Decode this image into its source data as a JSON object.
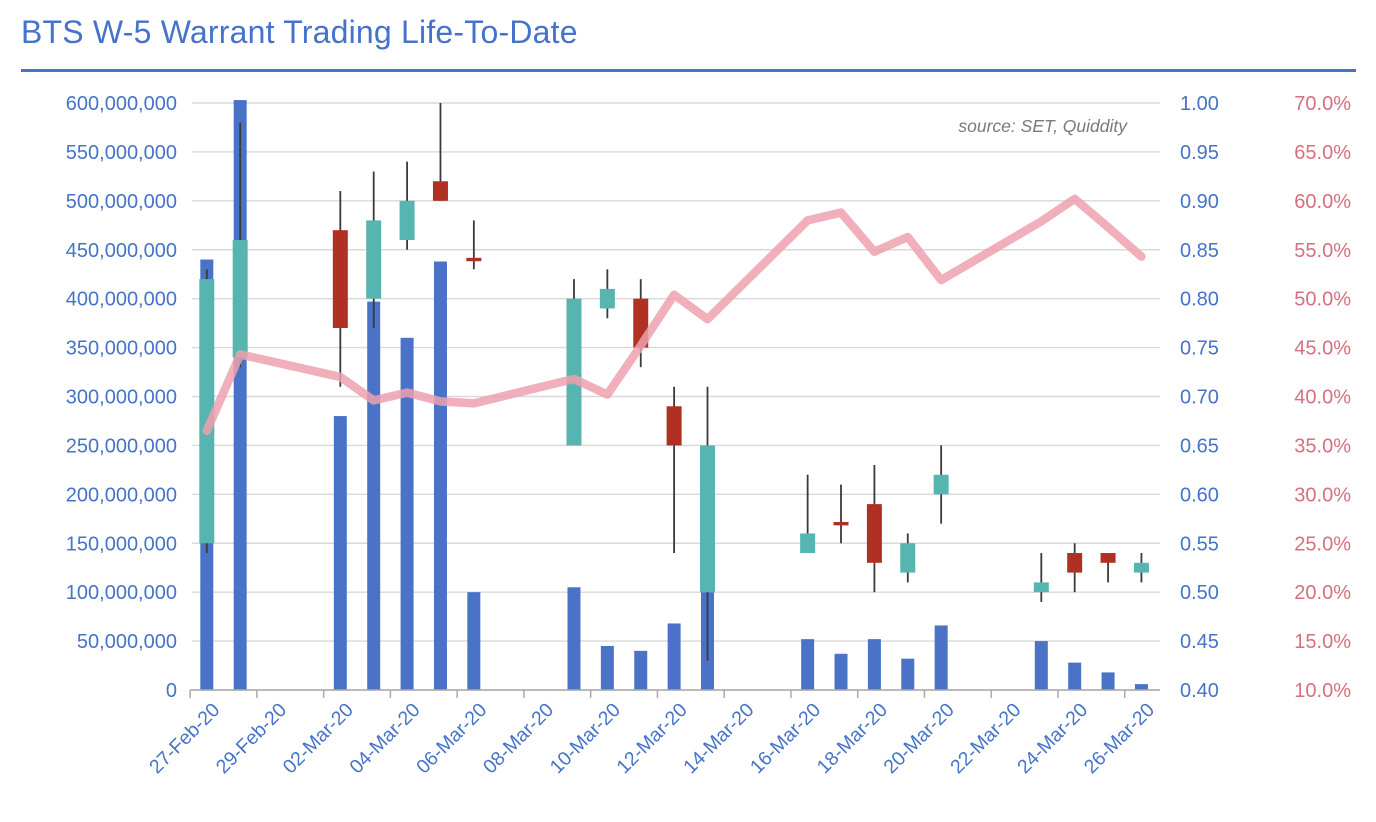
{
  "header": {
    "title": "BTS W-5 Warrant Trading Life-To-Date",
    "source_note": "source: SET, Quiddity"
  },
  "colors": {
    "title": "#4573c9",
    "divider": "#4573c9",
    "axis_blue": "#4573c9",
    "axis_pink": "#d66f7e",
    "volume_bar": "#4a73c8",
    "candle_up": "#57b5b1",
    "candle_down": "#b03123",
    "candle_wick": "#3a3a3a",
    "pct_line": "#eda1ae",
    "gridline": "#d9d9d9",
    "axis_line": "#aaaaaa",
    "source_text": "#7a7a7a"
  },
  "chart_data": {
    "type": "combo: volume bars (left axis) + daily OHLC candlesticks (right price axis) + percent line (far right axis)",
    "title": "BTS W-5 Warrant Trading Life-To-Date",
    "legend_position": "none",
    "grid": "horizontal only",
    "x_tick_labels": [
      "27-Feb-20",
      "29-Feb-20",
      "02-Mar-20",
      "04-Mar-20",
      "06-Mar-20",
      "08-Mar-20",
      "10-Mar-20",
      "12-Mar-20",
      "14-Mar-20",
      "16-Mar-20",
      "18-Mar-20",
      "20-Mar-20",
      "22-Mar-20",
      "24-Mar-20",
      "26-Mar-20"
    ],
    "left_axis": {
      "min": 0,
      "max": 600000000,
      "ticks": [
        "600,000,000",
        "550,000,000",
        "500,000,000",
        "450,000,000",
        "400,000,000",
        "350,000,000",
        "300,000,000",
        "250,000,000",
        "200,000,000",
        "150,000,000",
        "100,000,000",
        "50,000,000",
        "0"
      ]
    },
    "right_axis_price": {
      "min": 0.4,
      "max": 1.0,
      "ticks": [
        "1.00",
        "0.95",
        "0.90",
        "0.85",
        "0.80",
        "0.75",
        "0.70",
        "0.65",
        "0.60",
        "0.55",
        "0.50",
        "0.45",
        "0.40"
      ]
    },
    "right_axis_pct": {
      "min": 10,
      "max": 70,
      "ticks": [
        "70.0%",
        "65.0%",
        "60.0%",
        "55.0%",
        "50.0%",
        "45.0%",
        "40.0%",
        "35.0%",
        "30.0%",
        "25.0%",
        "20.0%",
        "15.0%",
        "10.0%"
      ]
    },
    "points": [
      {
        "date": "27-Feb-20",
        "volume": 440000000,
        "open": 0.55,
        "high": 0.83,
        "low": 0.54,
        "close": 0.82,
        "pct": 36.5
      },
      {
        "date": "28-Feb-20",
        "volume": 603000000,
        "open": 0.74,
        "high": 0.98,
        "low": 0.73,
        "close": 0.86,
        "pct": 44.3
      },
      {
        "date": "02-Mar-20",
        "volume": 280000000,
        "open": 0.87,
        "high": 0.91,
        "low": 0.71,
        "close": 0.77,
        "pct": 42.0
      },
      {
        "date": "03-Mar-20",
        "volume": 397000000,
        "open": 0.8,
        "high": 0.93,
        "low": 0.77,
        "close": 0.88,
        "pct": 39.6
      },
      {
        "date": "04-Mar-20",
        "volume": 360000000,
        "open": 0.86,
        "high": 0.94,
        "low": 0.85,
        "close": 0.9,
        "pct": 40.4
      },
      {
        "date": "05-Mar-20",
        "volume": 438000000,
        "open": 0.92,
        "high": 1.0,
        "low": 0.9,
        "close": 0.9,
        "pct": 39.5
      },
      {
        "date": "06-Mar-20",
        "volume": 100000000,
        "open": 0.84,
        "high": 0.88,
        "low": 0.83,
        "close": 0.84,
        "pct": 39.3
      },
      {
        "date": "09-Mar-20",
        "volume": 105000000,
        "open": 0.65,
        "high": 0.82,
        "low": 0.65,
        "close": 0.8,
        "pct": 41.8
      },
      {
        "date": "10-Mar-20",
        "volume": 45000000,
        "open": 0.79,
        "high": 0.83,
        "low": 0.78,
        "close": 0.81,
        "pct": 40.2
      },
      {
        "date": "11-Mar-20",
        "volume": 40000000,
        "open": 0.8,
        "high": 0.82,
        "low": 0.73,
        "close": 0.75,
        "pct": 45.2
      },
      {
        "date": "12-Mar-20",
        "volume": 68000000,
        "open": 0.69,
        "high": 0.71,
        "low": 0.54,
        "close": 0.65,
        "pct": 50.4
      },
      {
        "date": "13-Mar-20",
        "volume": 100000000,
        "open": 0.5,
        "high": 0.71,
        "low": 0.43,
        "close": 0.65,
        "pct": 47.9
      },
      {
        "date": "16-Mar-20",
        "volume": 52000000,
        "open": 0.54,
        "high": 0.62,
        "low": 0.54,
        "close": 0.56,
        "pct": 58.0
      },
      {
        "date": "17-Mar-20",
        "volume": 37000000,
        "open": 0.57,
        "high": 0.61,
        "low": 0.55,
        "close": 0.57,
        "pct": 58.8
      },
      {
        "date": "18-Mar-20",
        "volume": 52000000,
        "open": 0.59,
        "high": 0.63,
        "low": 0.5,
        "close": 0.53,
        "pct": 54.8
      },
      {
        "date": "19-Mar-20",
        "volume": 32000000,
        "open": 0.52,
        "high": 0.56,
        "low": 0.51,
        "close": 0.55,
        "pct": 56.3
      },
      {
        "date": "20-Mar-20",
        "volume": 66000000,
        "open": 0.6,
        "high": 0.65,
        "low": 0.57,
        "close": 0.62,
        "pct": 51.9
      },
      {
        "date": "23-Mar-20",
        "volume": 50000000,
        "open": 0.5,
        "high": 0.54,
        "low": 0.49,
        "close": 0.51,
        "pct": 57.9
      },
      {
        "date": "24-Mar-20",
        "volume": 28000000,
        "open": 0.54,
        "high": 0.55,
        "low": 0.5,
        "close": 0.52,
        "pct": 60.2
      },
      {
        "date": "25-Mar-20",
        "volume": 18000000,
        "open": 0.54,
        "high": 0.54,
        "low": 0.51,
        "close": 0.53,
        "pct": 57.3
      },
      {
        "date": "26-Mar-20",
        "volume": 6000000,
        "open": 0.52,
        "high": 0.54,
        "low": 0.51,
        "close": 0.53,
        "pct": 54.3
      }
    ]
  }
}
